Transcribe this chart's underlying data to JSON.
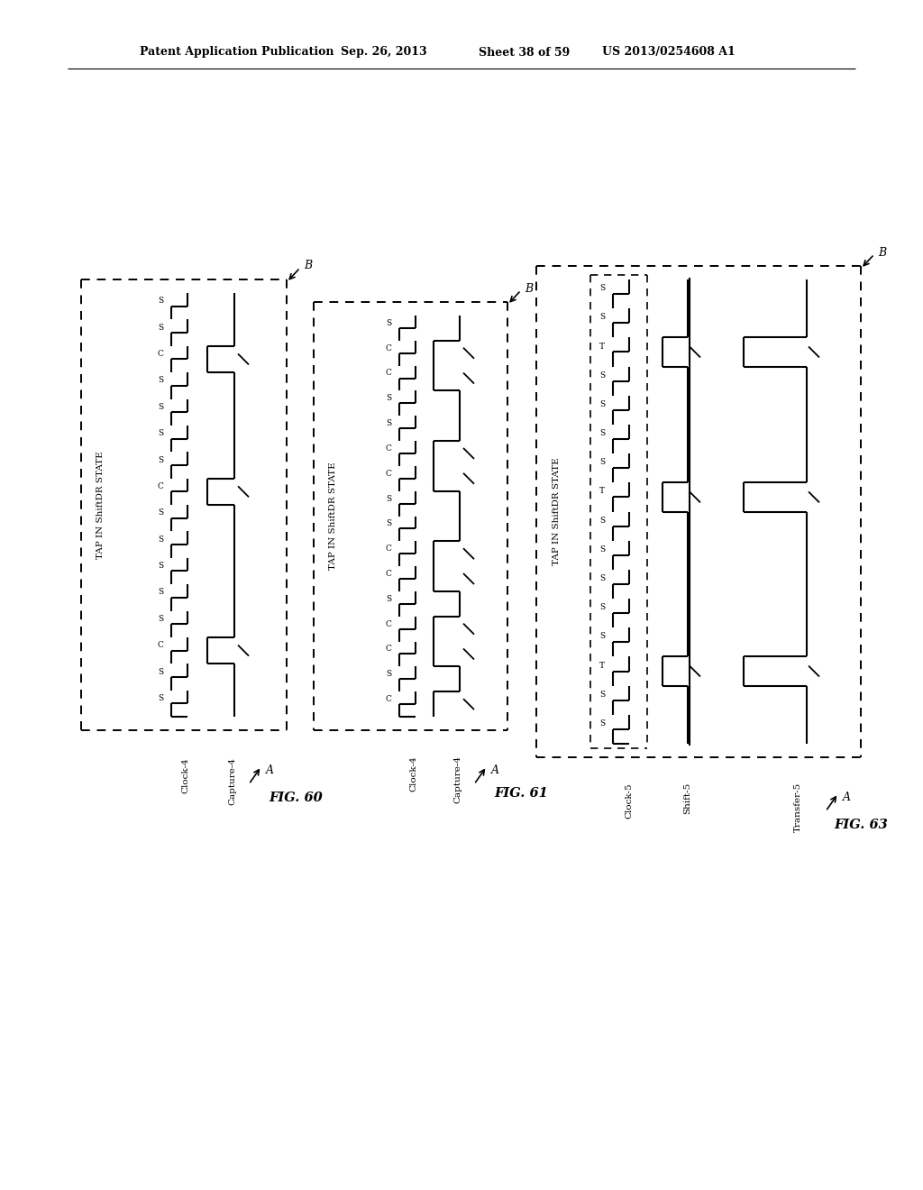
{
  "title_line1": "Patent Application Publication",
  "title_date": "Sep. 26, 2013",
  "title_sheet": "Sheet 38 of 59",
  "title_patent": "US 2013/0254608 A1",
  "fig60_label": "FIG. 60",
  "fig61_label": "FIG. 61",
  "fig63_label": "FIG. 63",
  "tap_state_label": "TAP IN ShiftDR STATE",
  "fig60_bottom_labels": [
    "Clock-4",
    "Capture-4"
  ],
  "fig61_bottom_labels": [
    "Clock-4",
    "Capture-4"
  ],
  "fig63_bottom_labels": [
    "Clock-5",
    "Shift-5",
    "Transfer-5"
  ],
  "cycle_labels_60": [
    "S",
    "S",
    "C",
    "S",
    "S",
    "S",
    "S",
    "S",
    "C",
    "S",
    "S",
    "S",
    "S",
    "C",
    "S",
    "S"
  ],
  "cycle_labels_61": [
    "C",
    "S",
    "C",
    "C",
    "S",
    "C",
    "C",
    "S",
    "S",
    "C",
    "C",
    "S",
    "S",
    "C",
    "C",
    "S"
  ],
  "cycle_labels_63": [
    "S",
    "S",
    "T",
    "S",
    "S",
    "S",
    "S",
    "S",
    "T",
    "S",
    "S",
    "S",
    "S",
    "T",
    "S",
    "S"
  ],
  "bg_color": "#ffffff",
  "line_color": "#000000"
}
